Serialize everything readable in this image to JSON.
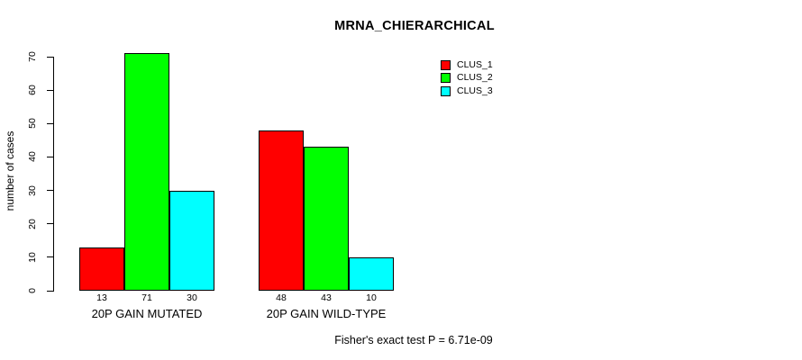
{
  "chart_data": {
    "type": "bar",
    "title": "MRNA_CHIERARCHICAL",
    "ylabel": "number of cases",
    "xlabel": "",
    "categories": [
      "20P GAIN MUTATED",
      "20P GAIN WILD-TYPE"
    ],
    "series": [
      {
        "name": "CLUS_1",
        "color": "#ff0000",
        "values": [
          13,
          48
        ]
      },
      {
        "name": "CLUS_2",
        "color": "#00ff00",
        "values": [
          71,
          43
        ]
      },
      {
        "name": "CLUS_3",
        "color": "#00ffff",
        "values": [
          30,
          10
        ]
      }
    ],
    "bar_value_labels": [
      [
        "13",
        "71",
        "30"
      ],
      [
        "48",
        "43",
        "10"
      ]
    ],
    "ylim": [
      0,
      70
    ],
    "yticks": [
      0,
      10,
      20,
      30,
      40,
      50,
      60,
      70
    ],
    "grid": false,
    "legend_position": "top-right",
    "annotation": "Fisher's exact test P = 6.71e-09"
  }
}
